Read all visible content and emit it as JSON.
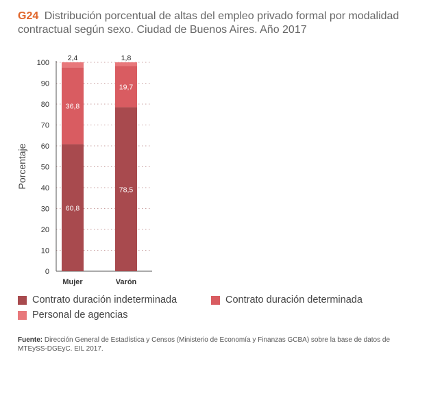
{
  "figure": {
    "id": "G24",
    "title": "Distribución porcentual de altas del empleo privado formal por modalidad contractual según sexo. Ciudad de Buenos Aires. Año 2017"
  },
  "chart_data": {
    "type": "bar",
    "stacked": true,
    "categories": [
      "Mujer",
      "Varón"
    ],
    "series": [
      {
        "name": "Contrato duración indeterminada",
        "color": "#a84a4e",
        "values": [
          60.8,
          78.5
        ],
        "labels": [
          "60,8",
          "78,5"
        ]
      },
      {
        "name": "Contrato duración determinada",
        "color": "#d95c61",
        "values": [
          36.8,
          19.7
        ],
        "labels": [
          "36,8",
          "19,7"
        ]
      },
      {
        "name": "Personal de agencias",
        "color": "#e8787b",
        "values": [
          2.4,
          1.8
        ],
        "labels": [
          "2,4",
          "1,8"
        ]
      }
    ],
    "ylabel": "Porcentaje",
    "xlabel": "",
    "ylim": [
      0,
      100
    ],
    "yticks": [
      0,
      10,
      20,
      30,
      40,
      50,
      60,
      70,
      80,
      90,
      100
    ],
    "grid": "dotted"
  },
  "legend": {
    "items": [
      {
        "label": "Contrato duración indeterminada",
        "color": "#a84a4e"
      },
      {
        "label": "Contrato duración determinada",
        "color": "#d95c61"
      },
      {
        "label": "Personal de agencias",
        "color": "#e8787b"
      }
    ]
  },
  "source": {
    "label": "Fuente:",
    "text": " Dirección General de Estadística y Censos (Ministerio de Economía y Finanzas GCBA) sobre la base de datos de MTEySS-DGEyC. EIL 2017."
  }
}
